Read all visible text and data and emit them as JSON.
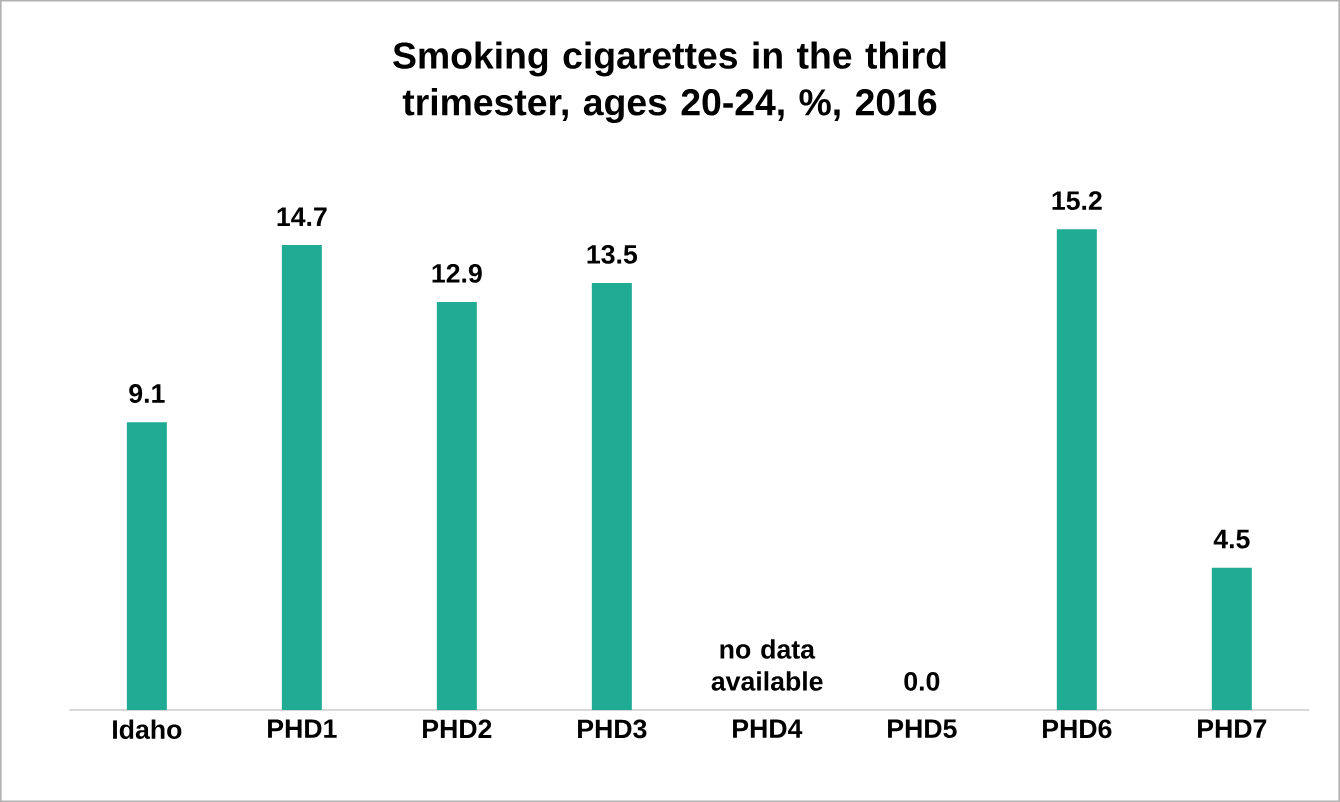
{
  "chart_data": {
    "type": "bar",
    "title": "Smoking cigarettes in the third trimester, ages 20-24, %, 2016",
    "categories": [
      "Idaho",
      "PHD1",
      "PHD2",
      "PHD3",
      "PHD4",
      "PHD5",
      "PHD6",
      "PHD7"
    ],
    "values": [
      9.1,
      14.7,
      12.9,
      13.5,
      null,
      0.0,
      15.2,
      4.5
    ],
    "value_labels": [
      "9.1",
      "14.7",
      "12.9",
      "13.5",
      null,
      "0.0",
      "15.2",
      "4.5"
    ],
    "color": "#20ab94",
    "annotations": [
      "no data available"
    ]
  }
}
